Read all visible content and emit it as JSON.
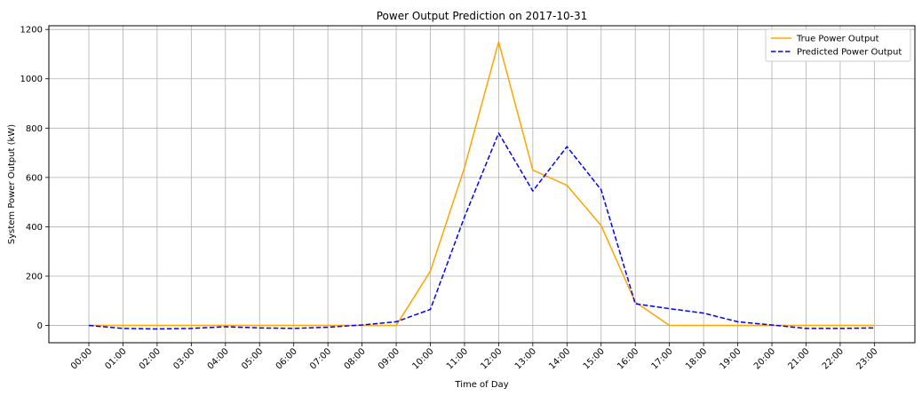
{
  "chart_data": {
    "type": "line",
    "title": "Power Output Prediction on 2017-10-31",
    "xlabel": "Time of Day",
    "ylabel": "System Power Output (kW)",
    "categories": [
      "00:00",
      "01:00",
      "02:00",
      "03:00",
      "04:00",
      "05:00",
      "06:00",
      "07:00",
      "08:00",
      "09:00",
      "10:00",
      "11:00",
      "12:00",
      "13:00",
      "14:00",
      "15:00",
      "16:00",
      "17:00",
      "18:00",
      "19:00",
      "20:00",
      "21:00",
      "22:00",
      "23:00"
    ],
    "ylim": [
      -70,
      1215
    ],
    "yticks": [
      0,
      200,
      400,
      600,
      800,
      1000,
      1200
    ],
    "grid": true,
    "legend_position": "top-right",
    "series": [
      {
        "name": "True Power Output",
        "color": "#ffa500",
        "style": "solid",
        "values": [
          0,
          0,
          0,
          0,
          0,
          0,
          0,
          0,
          0,
          0,
          220,
          640,
          1150,
          630,
          568,
          405,
          95,
          0,
          0,
          0,
          0,
          0,
          0,
          0
        ]
      },
      {
        "name": "Predicted Power Output",
        "color": "#0000ff",
        "style": "dashed",
        "values": [
          0,
          -12,
          -14,
          -12,
          -5,
          -10,
          -12,
          -7,
          2,
          15,
          65,
          440,
          780,
          545,
          725,
          550,
          88,
          68,
          50,
          15,
          2,
          -12,
          -12,
          -10
        ]
      }
    ]
  }
}
